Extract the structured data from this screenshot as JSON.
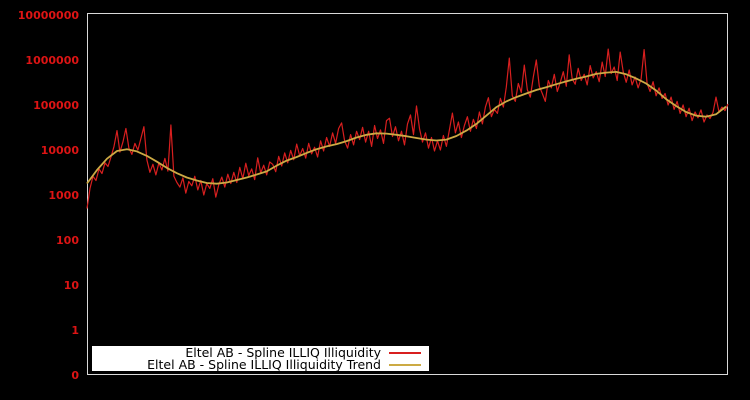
{
  "window": {
    "background_color": "#000000",
    "frame_color": "#d9d9d9"
  },
  "legend": {
    "background_color": "#ffffff",
    "text_color": "#000000",
    "items": [
      {
        "label": "Eltel AB - Spline ILLIQ Illiquidity",
        "color": "#d81f1f"
      },
      {
        "label": "Eltel AB - Spline ILLIQ Illiquidity Trend",
        "color": "#ccaa44"
      }
    ]
  },
  "chart_data": {
    "type": "line",
    "title": "",
    "xlabel": "",
    "ylabel": "",
    "grid": false,
    "legend_position": "bottom-left inside plot",
    "y_scale": "symlog",
    "y_decades": [
      0,
      7
    ],
    "y_tick_labels": [
      "10000000",
      "1000000",
      "100000",
      "10000",
      "1000",
      "100",
      "10",
      "1",
      "0"
    ],
    "y_tick_color": "#dd1414",
    "x_tick_labels": [],
    "x_index_range": [
      0,
      642
    ],
    "series": [
      {
        "name": "Eltel AB - Spline ILLIQ Illiquidity",
        "color": "#d81f1f",
        "stroke_width": 1.2,
        "x_start": 0,
        "x_step": 3,
        "values": [
          500,
          1400,
          2600,
          2100,
          3800,
          3000,
          5200,
          4300,
          7000,
          12000,
          27000,
          9000,
          15000,
          30000,
          11000,
          8000,
          14000,
          10000,
          18000,
          33000,
          6000,
          3200,
          4800,
          2800,
          5200,
          3600,
          6500,
          3400,
          36000,
          2600,
          1900,
          1500,
          2400,
          1100,
          2000,
          1600,
          2600,
          1300,
          2100,
          1000,
          1800,
          1400,
          2300,
          900,
          1700,
          2500,
          1500,
          2900,
          1800,
          3200,
          1900,
          4100,
          2300,
          5100,
          2700,
          3800,
          2200,
          6700,
          3100,
          4600,
          2800,
          5400,
          4800,
          3300,
          7200,
          4400,
          8600,
          5200,
          9800,
          6100,
          13500,
          7400,
          10800,
          6600,
          14000,
          8200,
          11500,
          7000,
          16000,
          9500,
          19000,
          12000,
          24000,
          14000,
          30000,
          40000,
          16000,
          11000,
          22000,
          13000,
          26000,
          17000,
          32000,
          15000,
          26000,
          12000,
          35000,
          18000,
          28000,
          14000,
          45000,
          51000,
          20000,
          33000,
          16000,
          26000,
          13000,
          38000,
          60000,
          22000,
          95000,
          30000,
          15000,
          24000,
          11000,
          19000,
          9500,
          16000,
          10000,
          21000,
          12000,
          28000,
          66000,
          24000,
          42000,
          19000,
          35000,
          55000,
          26000,
          48000,
          30000,
          70000,
          38000,
          90000,
          145000,
          55000,
          80000,
          65000,
          140000,
          90000,
          250000,
          1100000,
          160000,
          120000,
          300000,
          190000,
          770000,
          220000,
          150000,
          420000,
          1000000,
          260000,
          180000,
          120000,
          350000,
          240000,
          480000,
          200000,
          320000,
          550000,
          260000,
          1300000,
          380000,
          290000,
          650000,
          350000,
          480000,
          280000,
          750000,
          400000,
          550000,
          330000,
          900000,
          430000,
          1750000,
          500000,
          700000,
          350000,
          1500000,
          550000,
          320000,
          600000,
          280000,
          420000,
          240000,
          380000,
          1700000,
          300000,
          200000,
          330000,
          160000,
          240000,
          140000,
          180000,
          100000,
          150000,
          80000,
          120000,
          65000,
          100000,
          55000,
          85000,
          45000,
          70000,
          52000,
          78000,
          42000,
          60000,
          50000,
          68000,
          150000,
          70000,
          90000,
          75000,
          105000
        ]
      },
      {
        "name": "Eltel AB - Spline ILLIQ Illiquidity Trend",
        "color": "#ccaa44",
        "stroke_width": 1.8,
        "x_start": 0,
        "x_step": 10,
        "values": [
          1800,
          3600,
          6400,
          9500,
          10400,
          9300,
          7400,
          5500,
          4000,
          3050,
          2450,
          2100,
          1850,
          1780,
          1900,
          2150,
          2450,
          2850,
          3350,
          4500,
          5800,
          7000,
          8600,
          10400,
          12000,
          13500,
          15800,
          19000,
          21800,
          23500,
          23200,
          21800,
          20300,
          18500,
          17000,
          16300,
          17000,
          20500,
          27000,
          38000,
          58000,
          90000,
          120000,
          150000,
          180000,
          215000,
          248000,
          290000,
          335000,
          385000,
          430000,
          490000,
          525000,
          545000,
          480000,
          390000,
          300000,
          210000,
          135000,
          95000,
          70000,
          58000,
          55000,
          62000,
          92000
        ]
      }
    ]
  }
}
